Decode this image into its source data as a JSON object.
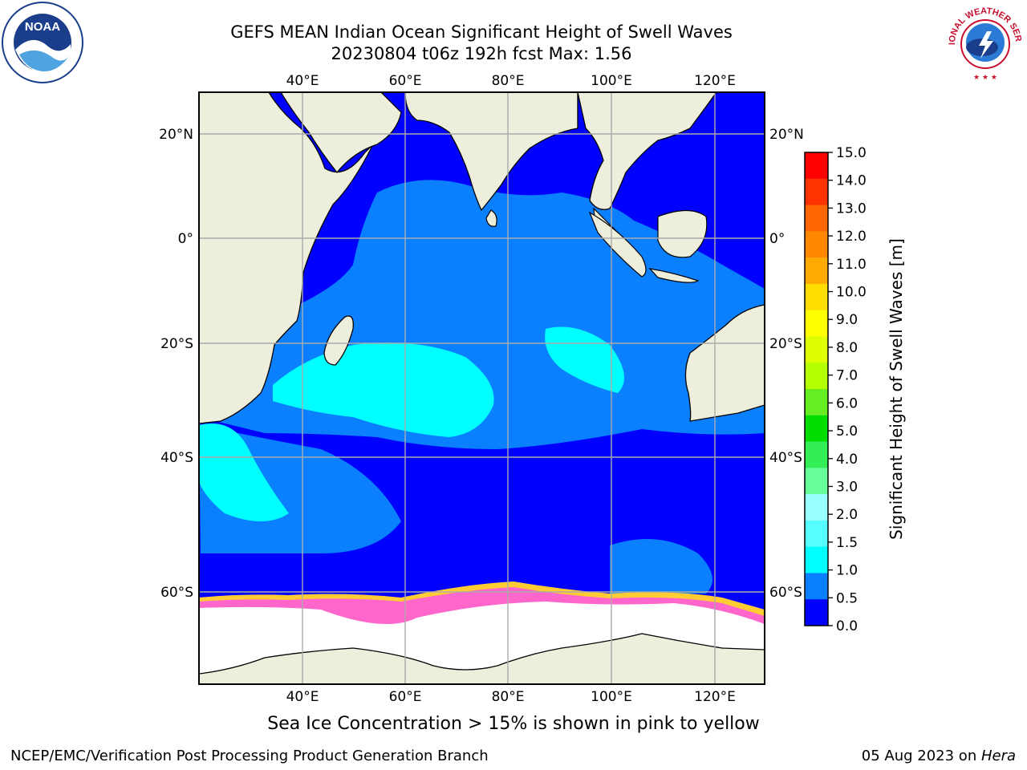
{
  "header": {
    "title_line1": "GEFS MEAN Indian Ocean Significant Height of Swell Waves",
    "title_line2": "20230804 t06z 192h fcst   Max: 1.56"
  },
  "map": {
    "region": "Indian Ocean",
    "lon_range": [
      20,
      130
    ],
    "lat_range": [
      -73,
      27
    ],
    "lon_ticks": [
      "40°E",
      "60°E",
      "80°E",
      "100°E",
      "120°E"
    ],
    "lat_ticks": [
      "20°N",
      "0°",
      "20°S",
      "40°S",
      "60°S"
    ],
    "gridlines": true,
    "colors": {
      "land": "#eeeedd",
      "level_0": "#0000ff",
      "level_05": "#0a80ff",
      "level_10": "#00ffff",
      "ice": "#ff66cc",
      "ice_edge": "#ffcc33"
    }
  },
  "colorbar": {
    "label": "Significant Height of Swell Waves [m]",
    "ticks": [
      "15.0",
      "14.0",
      "13.0",
      "12.0",
      "11.0",
      "10.0",
      "9.0",
      "8.0",
      "7.0",
      "6.0",
      "5.0",
      "4.0",
      "3.0",
      "2.0",
      "1.5",
      "1.0",
      "0.5",
      "0.0"
    ],
    "colors": [
      "#ff0000",
      "#ff3300",
      "#ff6600",
      "#ff8800",
      "#ffaa00",
      "#ffdd00",
      "#ffff00",
      "#ddff00",
      "#b4ff00",
      "#66ee22",
      "#00dd00",
      "#33ee55",
      "#66ff99",
      "#99ffff",
      "#55ffff",
      "#00ffff",
      "#0a80ff",
      "#0000ff"
    ]
  },
  "caption": "Sea Ice Concentration > 15% is shown in pink to yellow",
  "footer": {
    "left": "NCEP/EMC/Verification Post Processing Product Generation Branch",
    "right_prefix": "05 Aug 2023 on ",
    "right_machine": "Hera"
  },
  "logos": {
    "left": "NOAA",
    "right": "NATIONAL WEATHER SERVICE"
  }
}
